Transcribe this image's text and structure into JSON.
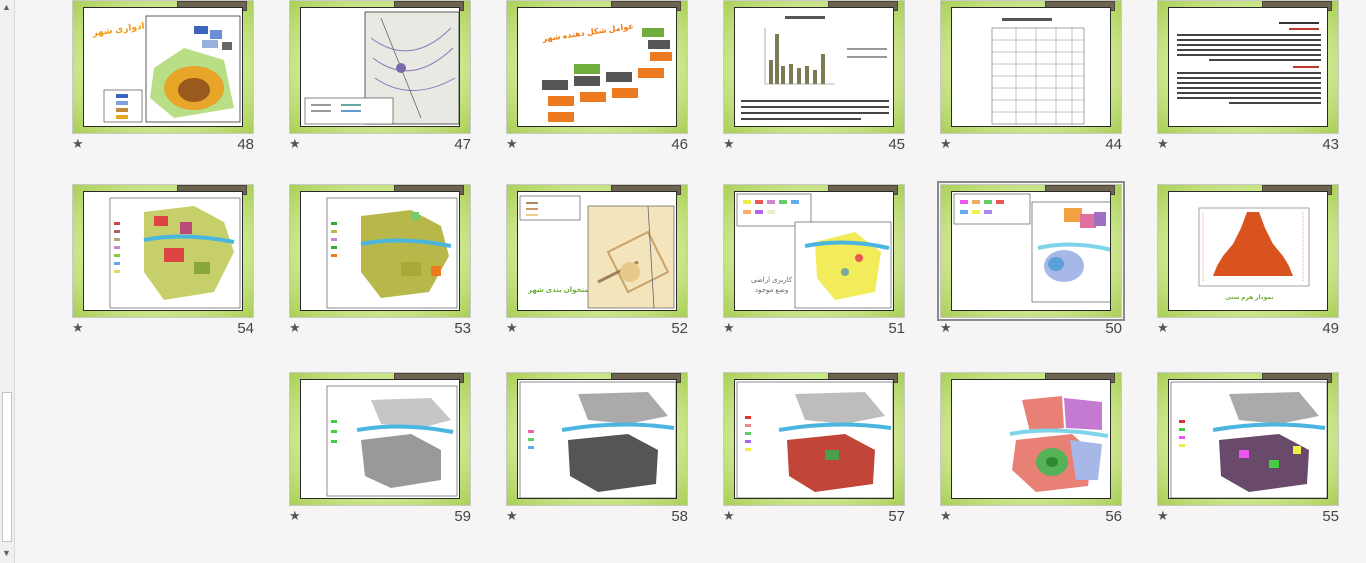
{
  "slides_row1": [
    {
      "number": "48",
      "star": "★"
    },
    {
      "number": "47",
      "star": "★"
    },
    {
      "number": "46",
      "star": "★"
    },
    {
      "number": "45",
      "star": "★"
    },
    {
      "number": "44",
      "star": "★"
    },
    {
      "number": "43",
      "star": "★"
    }
  ],
  "slides_row2": [
    {
      "number": "54",
      "star": "★"
    },
    {
      "number": "53",
      "star": "★"
    },
    {
      "number": "52",
      "star": "★"
    },
    {
      "number": "51",
      "star": "★"
    },
    {
      "number": "50",
      "star": "★"
    },
    {
      "number": "49",
      "star": "★"
    }
  ],
  "slides_row3": [
    {
      "number": "59",
      "star": "★"
    },
    {
      "number": "58",
      "star": "★"
    },
    {
      "number": "57",
      "star": "★"
    },
    {
      "number": "56",
      "star": "★"
    },
    {
      "number": "55",
      "star": "★"
    }
  ],
  "slide_text": {
    "s48_title": "توسعه ادواری شهر",
    "s46_title": "عوامل شکل دهنده شهر",
    "s52_title": "استخوان بندی شهر",
    "s51_line1": "کاربری اراضی",
    "s51_line2": "وضع موجود",
    "s49_caption": "نمودار هرم سنی"
  },
  "scrollbar": {
    "up_arrow": "▲",
    "down_arrow": "▼"
  },
  "colors": {
    "frame_green": "#a9cf57",
    "tab_brown": "#6c6451"
  }
}
